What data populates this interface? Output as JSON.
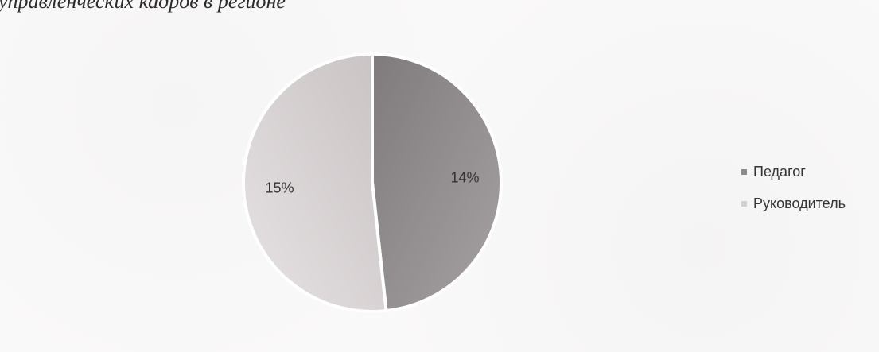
{
  "caption": "управленческих кадров в регионе",
  "chart_data": {
    "type": "pie",
    "title": "",
    "slices": [
      {
        "name": "Педагог",
        "value": 14,
        "label": "14%",
        "color": "#8e8b8c"
      },
      {
        "name": "Руководитель",
        "value": 15,
        "label": "15%",
        "color": "#d6d0d1"
      }
    ],
    "start_angle_deg": 0,
    "legend_position": "right"
  }
}
